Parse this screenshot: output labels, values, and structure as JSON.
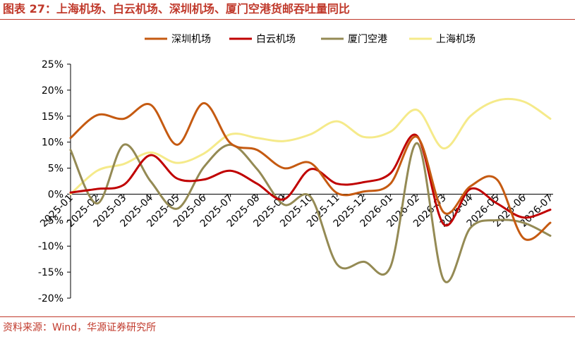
{
  "title": "图表 27：上海机场、白云机场、深圳机场、厦门空港货邮吞吐量同比",
  "source": "资料来源：Wind，华源证券研究所",
  "chart_data": {
    "type": "line",
    "smooth": true,
    "categories": [
      "2025-01",
      "2025-02",
      "2025-03",
      "2025-04",
      "2025-05",
      "2025-06",
      "2025-07",
      "2025-08",
      "2025-09",
      "2025-10",
      "2025-11",
      "2025-12",
      "2026-01",
      "2026-02",
      "2026-03",
      "2026-04",
      "2026-05",
      "2026-06",
      "2026-07"
    ],
    "y_ticks": [
      "25%",
      "20%",
      "15%",
      "10%",
      "5%",
      "0%",
      "-5%",
      "-10%",
      "-15%",
      "-20%"
    ],
    "ylim": [
      -20,
      25
    ],
    "y_step": 5,
    "grid": false,
    "legend_position": "top",
    "series": [
      {
        "name": "深圳机场",
        "color": "#c55a11",
        "values": [
          10.8,
          15.2,
          14.5,
          17.2,
          9.5,
          17.5,
          9.8,
          8.5,
          5.0,
          6.0,
          0.2,
          0.5,
          2.0,
          11.0,
          -3.5,
          1.5,
          2.8,
          -8.5,
          -5.5
        ]
      },
      {
        "name": "白云机场",
        "color": "#c00000",
        "values": [
          0.3,
          1.0,
          1.8,
          7.5,
          3.0,
          2.8,
          4.5,
          2.0,
          -1.0,
          4.8,
          2.0,
          2.3,
          4.0,
          11.2,
          -5.8,
          1.0,
          -1.8,
          -4.5,
          -3.0
        ]
      },
      {
        "name": "厦门空港",
        "color": "#948a54",
        "values": [
          8.5,
          -1.8,
          9.5,
          2.5,
          -2.8,
          5.2,
          9.5,
          4.8,
          -2.0,
          -0.5,
          -13.5,
          -13.0,
          -14.0,
          9.8,
          -16.5,
          -6.5,
          -5.0,
          -5.5,
          -8.0
        ]
      },
      {
        "name": "上海机场",
        "color": "#f5ea8a",
        "values": [
          0.0,
          4.5,
          5.8,
          8.0,
          6.0,
          7.8,
          11.5,
          10.8,
          10.2,
          11.5,
          14.0,
          11.0,
          12.0,
          16.2,
          8.8,
          15.0,
          18.0,
          17.8,
          14.5
        ]
      }
    ]
  }
}
